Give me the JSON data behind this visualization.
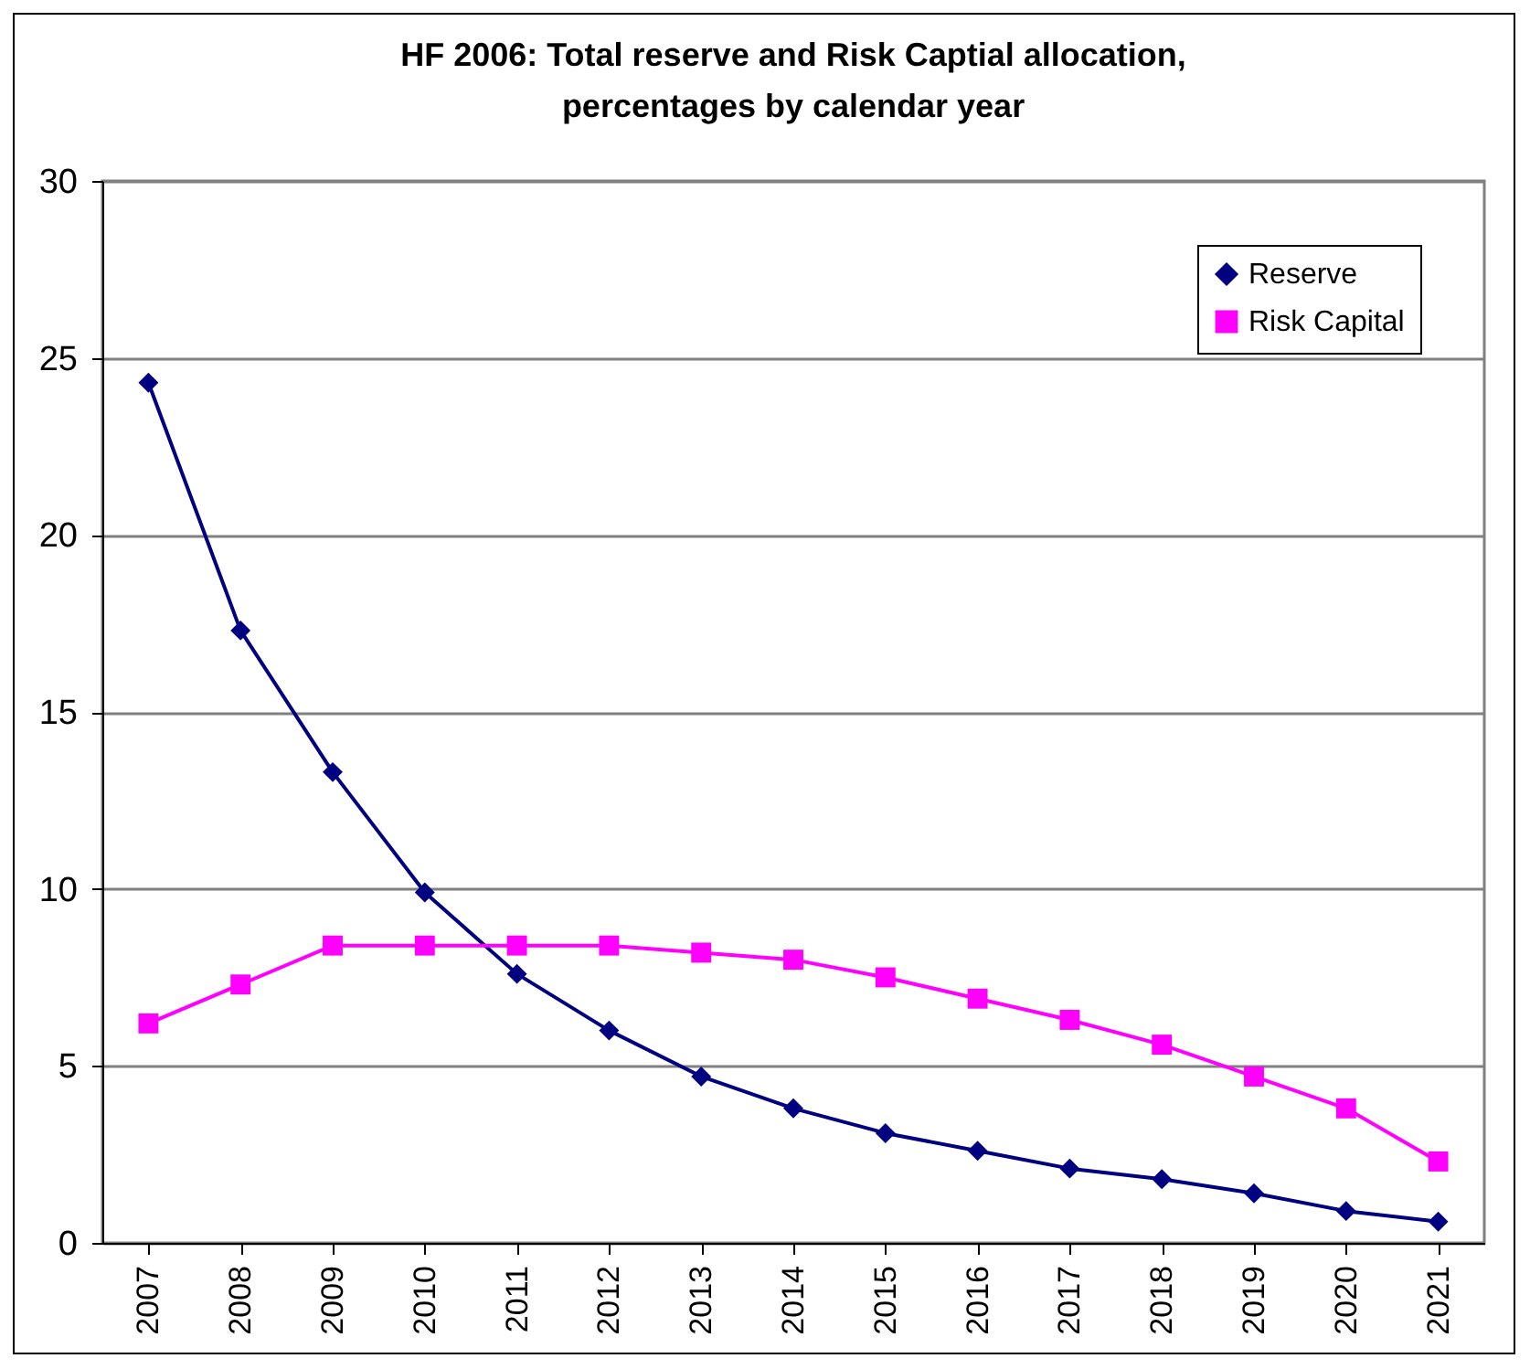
{
  "chart_data": {
    "type": "line",
    "title": "HF 2006: Total reserve and Risk Captial allocation, percentages by calendar year",
    "categories": [
      "2007",
      "2008",
      "2009",
      "2010",
      "2011",
      "2012",
      "2013",
      "2014",
      "2015",
      "2016",
      "2017",
      "2018",
      "2019",
      "2020",
      "2021"
    ],
    "series": [
      {
        "name": "Reserve",
        "color": "#000080",
        "marker": "diamond",
        "values": [
          24.3,
          17.3,
          13.3,
          9.9,
          7.6,
          6.0,
          4.7,
          3.8,
          3.1,
          2.6,
          2.1,
          1.8,
          1.4,
          0.9,
          0.6
        ]
      },
      {
        "name": "Risk Capital",
        "color": "#ff00ff",
        "marker": "square",
        "values": [
          6.2,
          7.3,
          8.4,
          8.4,
          8.4,
          8.4,
          8.2,
          8.0,
          7.5,
          6.9,
          6.3,
          5.6,
          4.7,
          3.8,
          2.3
        ]
      }
    ],
    "ylim": [
      0,
      30
    ],
    "yticks": [
      0,
      5,
      10,
      15,
      20,
      25,
      30
    ],
    "grid": "y",
    "legend": "top right",
    "line_style": "solid"
  }
}
